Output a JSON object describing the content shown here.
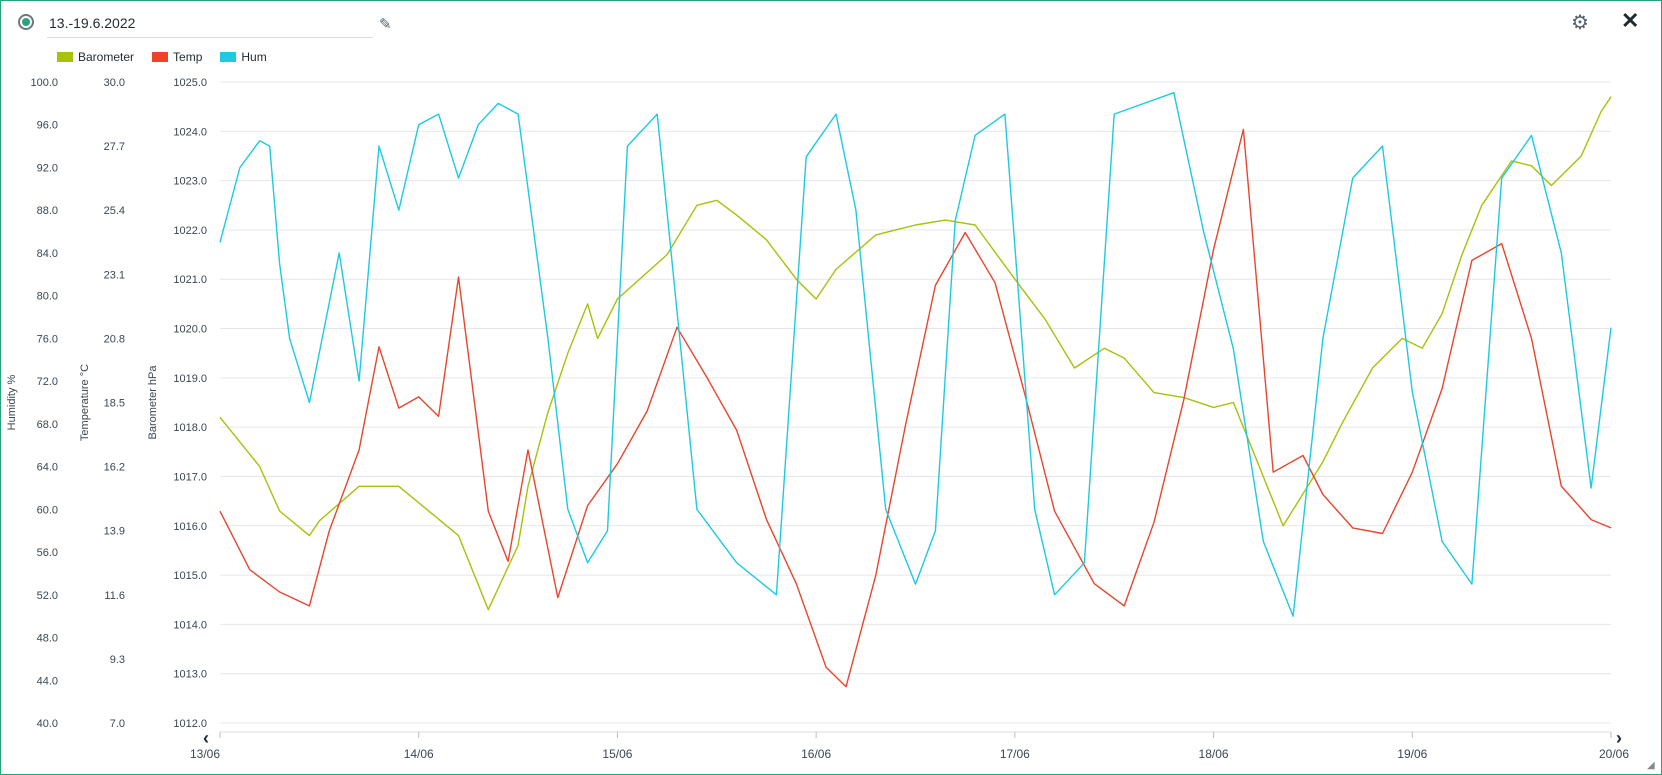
{
  "header": {
    "title": "13.-19.6.2022"
  },
  "icons": {
    "radio": "radio-selected-icon",
    "edit": "pencil-icon",
    "settings": "gear-icon",
    "close": "close-icon"
  },
  "legend": [
    {
      "name": "Barometer",
      "color": "#a8c10a"
    },
    {
      "name": "Temp",
      "color": "#e8452e"
    },
    {
      "name": "Hum",
      "color": "#1ccbe0"
    }
  ],
  "chart_data": {
    "type": "line",
    "x_ticks": [
      "13/06",
      "14/06",
      "15/06",
      "16/06",
      "17/06",
      "18/06",
      "19/06",
      "20/06"
    ],
    "xlim": [
      "13/06 00:00",
      "20/06 00:00"
    ],
    "axes": {
      "humidity": {
        "label": "Humidity %",
        "range": [
          40,
          100
        ],
        "ticks": [
          "40.0",
          "44.0",
          "48.0",
          "52.0",
          "56.0",
          "60.0",
          "64.0",
          "68.0",
          "72.0",
          "76.0",
          "80.0",
          "84.0",
          "88.0",
          "92.0",
          "96.0",
          "100.0"
        ]
      },
      "temperature": {
        "label": "Temperature °C",
        "range": [
          7.0,
          30.0
        ],
        "ticks": [
          "7.0",
          "9.3",
          "11.6",
          "13.9",
          "16.2",
          "18.5",
          "20.8",
          "23.1",
          "25.4",
          "27.7",
          "30.0"
        ]
      },
      "barometer": {
        "label": "Barometer hPa",
        "range": [
          1012.0,
          1025.0
        ],
        "ticks": [
          "1012.0",
          "1013.0",
          "1014.0",
          "1015.0",
          "1016.0",
          "1017.0",
          "1018.0",
          "1019.0",
          "1020.0",
          "1021.0",
          "1022.0",
          "1023.0",
          "1024.0",
          "1025.0"
        ]
      }
    },
    "grid": true,
    "legend_position": "top-left",
    "series": [
      {
        "name": "Barometer",
        "axis": "barometer",
        "color": "#a8c10a",
        "x": [
          0,
          0.2,
          0.3,
          0.45,
          0.5,
          0.7,
          0.9,
          1.2,
          1.35,
          1.5,
          1.55,
          1.65,
          1.75,
          1.85,
          1.9,
          2,
          2.25,
          2.4,
          2.5,
          2.6,
          2.75,
          2.9,
          3.0,
          3.1,
          3.3,
          3.5,
          3.65,
          3.8,
          4.0,
          4.15,
          4.3,
          4.45,
          4.55,
          4.7,
          4.85,
          5.0,
          5.1,
          5.2,
          5.35,
          5.55,
          5.65,
          5.8,
          5.95,
          6.05,
          6.15,
          6.25,
          6.35,
          6.5,
          6.6,
          6.7,
          6.85,
          6.95,
          7.0
        ],
        "y": [
          1018.2,
          1017.2,
          1016.3,
          1015.8,
          1016.1,
          1016.8,
          1016.8,
          1015.8,
          1014.3,
          1015.6,
          1016.8,
          1018.3,
          1019.5,
          1020.5,
          1019.8,
          1020.6,
          1021.5,
          1022.5,
          1022.6,
          1022.3,
          1021.8,
          1021.0,
          1020.6,
          1021.2,
          1021.9,
          1022.1,
          1022.2,
          1022.1,
          1021.0,
          1020.2,
          1019.2,
          1019.6,
          1019.4,
          1018.7,
          1018.6,
          1018.4,
          1018.5,
          1017.5,
          1016.0,
          1017.3,
          1018.1,
          1019.2,
          1019.8,
          1019.6,
          1020.3,
          1021.5,
          1022.5,
          1023.4,
          1023.3,
          1022.9,
          1023.5,
          1024.4,
          1024.7
        ]
      },
      {
        "name": "Temp",
        "axis": "temperature",
        "color": "#e8452e",
        "x": [
          0,
          0.15,
          0.3,
          0.45,
          0.55,
          0.7,
          0.8,
          0.9,
          1.0,
          1.1,
          1.2,
          1.35,
          1.45,
          1.55,
          1.7,
          1.85,
          2.0,
          2.15,
          2.3,
          2.45,
          2.6,
          2.75,
          2.9,
          3.05,
          3.15,
          3.3,
          3.45,
          3.6,
          3.75,
          3.9,
          4.05,
          4.2,
          4.4,
          4.55,
          4.7,
          4.85,
          5.0,
          5.15,
          5.3,
          5.45,
          5.55,
          5.7,
          5.85,
          6.0,
          6.15,
          6.3,
          6.45,
          6.6,
          6.75,
          6.9,
          7.0
        ],
        "y": [
          14.6,
          12.5,
          11.7,
          11.2,
          13.9,
          16.8,
          20.5,
          18.3,
          18.7,
          18.0,
          23.0,
          14.6,
          12.8,
          16.8,
          11.5,
          14.8,
          16.3,
          18.2,
          21.2,
          19.4,
          17.5,
          14.3,
          12.0,
          9.0,
          8.3,
          12.3,
          17.7,
          22.7,
          24.6,
          22.8,
          18.8,
          14.6,
          12.0,
          11.2,
          14.2,
          18.6,
          24.0,
          28.3,
          16.0,
          16.6,
          15.2,
          14.0,
          13.8,
          16.0,
          19.0,
          23.6,
          24.2,
          20.8,
          15.5,
          14.3,
          14.0
        ]
      },
      {
        "name": "Hum",
        "axis": "humidity",
        "color": "#1ccbe0",
        "x": [
          0,
          0.1,
          0.2,
          0.25,
          0.3,
          0.35,
          0.45,
          0.6,
          0.7,
          0.8,
          0.9,
          1.0,
          1.1,
          1.2,
          1.3,
          1.4,
          1.5,
          1.65,
          1.75,
          1.85,
          1.95,
          2.05,
          2.2,
          2.4,
          2.6,
          2.8,
          2.95,
          3.1,
          3.2,
          3.35,
          3.5,
          3.6,
          3.7,
          3.8,
          3.95,
          4.1,
          4.2,
          4.35,
          4.5,
          4.65,
          4.8,
          4.95,
          5.1,
          5.25,
          5.4,
          5.55,
          5.7,
          5.85,
          6.0,
          6.15,
          6.3,
          6.45,
          6.6,
          6.75,
          6.9,
          7.0
        ],
        "y": [
          85,
          92,
          94.5,
          94,
          83,
          76,
          70,
          84,
          72,
          94,
          88,
          96,
          97,
          91,
          96,
          98,
          97,
          76,
          60,
          55,
          58,
          94,
          97,
          60,
          55,
          52,
          93,
          97,
          88,
          60,
          53,
          58,
          87,
          95,
          97,
          60,
          52,
          55,
          97,
          98,
          99,
          86,
          75,
          57,
          50,
          76,
          91,
          94,
          71,
          57,
          53,
          91,
          95,
          84,
          62,
          77
        ]
      }
    ]
  }
}
